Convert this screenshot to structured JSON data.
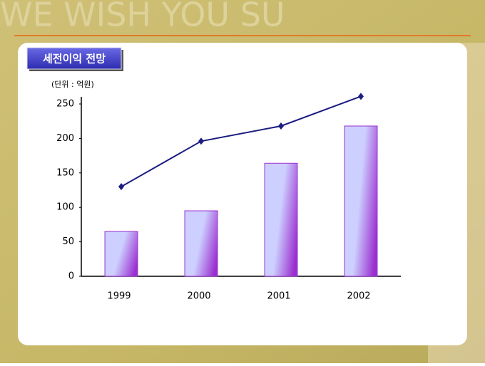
{
  "background_text": "WE WISH YOU SU",
  "chart_data": {
    "type": "bar",
    "title": "세전이익 전망",
    "unit_label": "(단위 : 억원)",
    "categories": [
      "1999",
      "2000",
      "2001",
      "2002"
    ],
    "series": [
      {
        "type": "bar",
        "color": "#9a2fd0",
        "highlight_color": "#cdd0ff",
        "values": [
          65,
          95,
          164,
          218
        ]
      },
      {
        "type": "line",
        "color": "#1c1c82",
        "values": [
          130,
          196,
          218,
          261
        ]
      }
    ],
    "ylim": [
      0,
      250
    ],
    "yticks": [
      0,
      50,
      100,
      150,
      200,
      250
    ],
    "grid": false
  }
}
